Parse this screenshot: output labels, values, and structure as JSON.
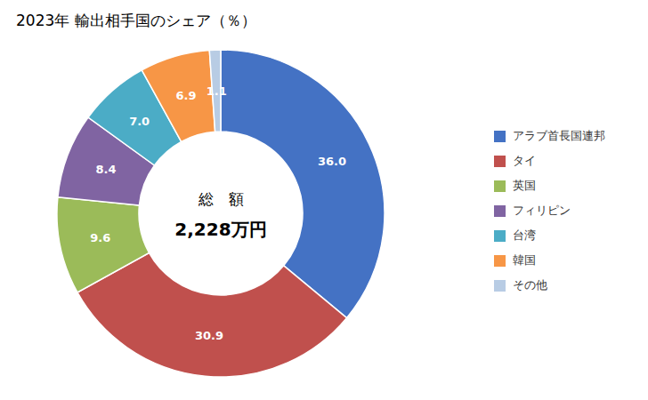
{
  "chart_data": {
    "type": "pie",
    "title": "2023年 輸出相手国のシェア（％）",
    "annotations": [
      "総　額",
      "2,228万円"
    ],
    "categories": [
      "アラブ首長国連邦",
      "タイ",
      "英国",
      "フィリピン",
      "台湾",
      "韓国",
      "その他"
    ],
    "values": [
      36.0,
      30.9,
      9.6,
      8.4,
      7.0,
      6.9,
      1.1
    ],
    "value_labels": [
      "36.0",
      "30.9",
      "9.6",
      "8.4",
      "7.0",
      "6.9",
      "1.1"
    ],
    "colors": [
      "#4472C4",
      "#C0504D",
      "#9BBB59",
      "#8064A2",
      "#4BACC6",
      "#F79646",
      "#B8CCE4"
    ],
    "data_labels": true,
    "legend": "right"
  }
}
